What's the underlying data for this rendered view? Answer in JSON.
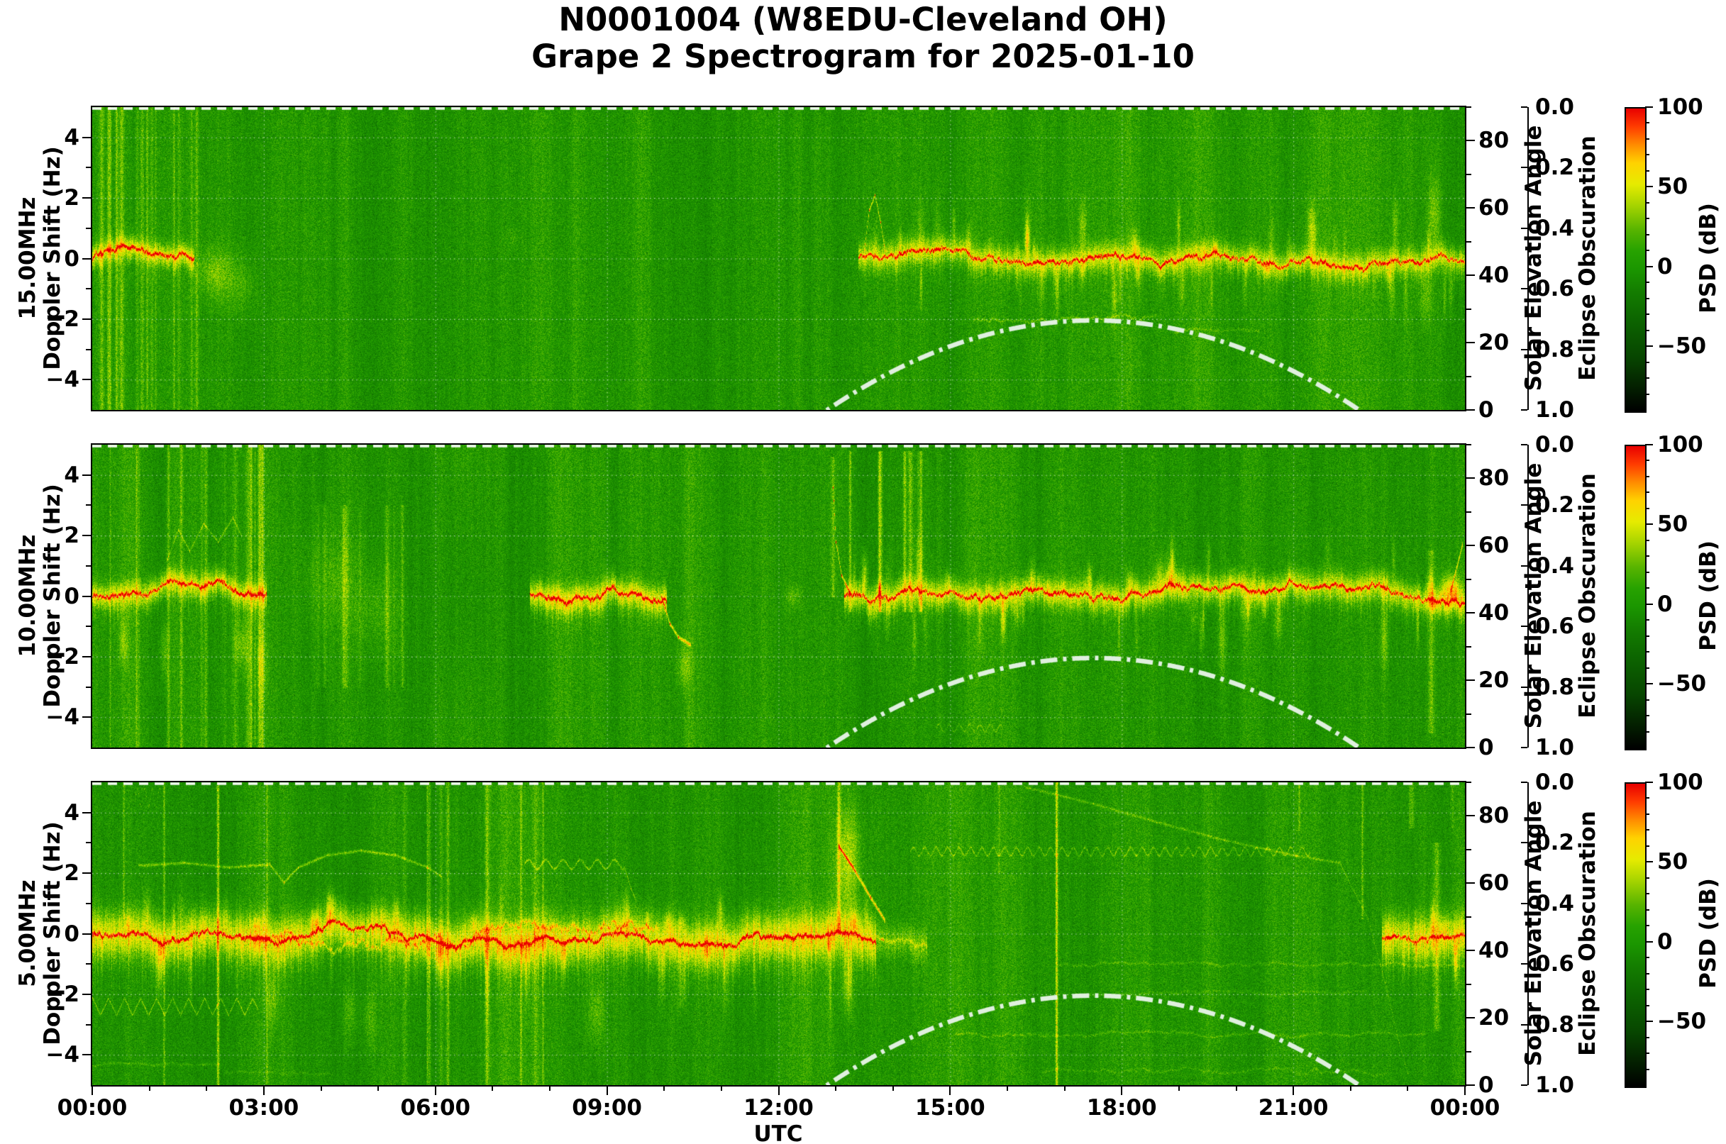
{
  "header": {
    "station_id": "N0001004",
    "callsign": "W8EDU",
    "location": "Cleveland OH",
    "date": "2025-01-10"
  },
  "title": {
    "line1": "N0001004 (W8EDU-Cleveland OH)",
    "line2": "Grape 2 Spectrogram for 2025-01-10"
  },
  "colors": {
    "background_green": "#27a200",
    "band_yellow": "#e6eb00",
    "core_orange": "#ff8c00",
    "core_red": "#e80000",
    "solar_curve": "#e8f4e8",
    "grid_white": "#ffffff"
  },
  "chart_data": {
    "type": "heatmap",
    "title": "N0001004 (W8EDU-Cleveland OH) Grape 2 Spectrogram for 2025-01-10",
    "x_axis": {
      "label": "UTC",
      "range_hours": [
        0,
        24
      ],
      "tick_hours": [
        0,
        3,
        6,
        9,
        12,
        15,
        18,
        21,
        24
      ],
      "tick_labels": [
        "00:00",
        "03:00",
        "06:00",
        "09:00",
        "12:00",
        "15:00",
        "18:00",
        "21:00",
        "00:00"
      ],
      "grid": true
    },
    "right_axes": {
      "solar": {
        "label": "Solar Elevation Angle",
        "range": [
          0,
          90
        ],
        "tick_values": [
          0,
          20,
          40,
          60,
          80
        ],
        "tick_labels": [
          "0",
          "20",
          "40",
          "60",
          "80"
        ]
      },
      "eclipse": {
        "label": "Eclipse Obscuration",
        "range": [
          0.0,
          1.0
        ],
        "inverted": true,
        "tick_values": [
          0,
          0.2,
          0.4,
          0.6,
          0.8,
          1.0
        ],
        "tick_labels": [
          "0.0",
          "0.2",
          "0.4",
          "0.6",
          "0.8",
          "1.0"
        ]
      }
    },
    "colorbar": {
      "label": "PSD (dB)",
      "range_top_bottom": [
        100,
        -90
      ],
      "tick_values": [
        100,
        50,
        0,
        -50
      ],
      "tick_labels": [
        "100",
        "50",
        "0",
        "−50"
      ]
    },
    "solar_curve": {
      "rise": 12.85,
      "peak_time": 17.5,
      "set": 22.15,
      "peak_elev": 26.6,
      "style": "dash-dot white"
    },
    "eclipse_curve": {
      "value": 0.0,
      "note": "flat dashed line along top of each panel (no eclipse)"
    },
    "panels": [
      {
        "freq_label": "15.00MHz",
        "ylabel": "Doppler Shift (Hz)",
        "y_range": [
          -5,
          5
        ],
        "ytick_values": [
          4,
          2,
          0,
          -2,
          -4
        ],
        "ytick_labels": [
          "4",
          "2",
          "0",
          "−2",
          "−4"
        ],
        "features": [
          {
            "k": "streaks",
            "t0": 0.05,
            "t1": 1.8,
            "n": 14,
            "y0": 5,
            "y1": -5,
            "a": 0.09
          },
          {
            "k": "band",
            "t0": 0,
            "t1": 1.78,
            "y": 0.05,
            "s": 0.35,
            "g": 0.22,
            "c": 0.34
          },
          {
            "k": "vline",
            "t": 1.82,
            "y0": 5,
            "y1": -5,
            "a": 0.1,
            "w": 2
          },
          {
            "k": "blob",
            "t": 2.15,
            "y": -0.45,
            "st": 0.3,
            "sy": 0.8,
            "a": 0.13
          },
          {
            "k": "blob",
            "t": 2.6,
            "y": -0.9,
            "st": 0.25,
            "sy": 0.9,
            "a": 0.07
          },
          {
            "k": "blob",
            "t": 7.35,
            "y": 0.7,
            "st": 0.1,
            "sy": 0.3,
            "a": 0.05
          },
          {
            "k": "line",
            "p": [
              [
                13.5,
                0.3
              ],
              [
                13.58,
                1.6
              ],
              [
                13.68,
                2.1
              ],
              [
                13.78,
                1.2
              ],
              [
                13.85,
                0.3
              ]
            ],
            "a": 0.22,
            "w": 2.5
          },
          {
            "k": "band",
            "t0": 13.4,
            "t1": 24,
            "y": 0,
            "s": 0.42,
            "g": 0.2,
            "c": 0.33,
            "spk": [
              24,
              22,
              2.2,
              2.3
            ]
          },
          {
            "k": "hline",
            "t0": 15.4,
            "t1": 18.6,
            "y": -2.05,
            "a": 0.1,
            "wg": 0.07
          },
          {
            "k": "hline",
            "t0": 18.9,
            "t1": 20.4,
            "y": -2.45,
            "a": 0.07,
            "wg": 0.05
          },
          {
            "k": "blob",
            "t": 23.45,
            "y": 1.5,
            "st": 0.1,
            "sy": 1.2,
            "a": 0.13
          },
          {
            "k": "blob",
            "t": 23.3,
            "y": -1.2,
            "st": 0.12,
            "sy": 0.9,
            "a": 0.1
          }
        ]
      },
      {
        "freq_label": "10.00MHz",
        "ylabel": "Doppler Shift (Hz)",
        "y_range": [
          -5,
          5
        ],
        "ytick_values": [
          4,
          2,
          0,
          -2,
          -4
        ],
        "ytick_labels": [
          "4",
          "2",
          "0",
          "−2",
          "−4"
        ],
        "features": [
          {
            "k": "streaks",
            "t0": 0.3,
            "t1": 3.3,
            "n": 16,
            "y0": 5,
            "y1": -5,
            "a": 0.08
          },
          {
            "k": "band",
            "t0": 0,
            "t1": 3.05,
            "y": 0,
            "s": 0.4,
            "g": 0.22,
            "c": 0.34
          },
          {
            "k": "blob",
            "t": 0.55,
            "y": -1.5,
            "st": 0.08,
            "sy": 0.8,
            "a": 0.12
          },
          {
            "k": "blob",
            "t": 1.25,
            "y": -1.8,
            "st": 0.07,
            "sy": 0.9,
            "a": 0.11
          },
          {
            "k": "blob",
            "t": 2.6,
            "y": -1.6,
            "st": 0.12,
            "sy": 0.8,
            "a": 0.12
          },
          {
            "k": "blob",
            "t": 2.95,
            "y": -2.2,
            "st": 0.1,
            "sy": 1.0,
            "a": 0.1
          },
          {
            "k": "line",
            "p": [
              [
                1.3,
                1.2
              ],
              [
                1.5,
                2.2
              ],
              [
                1.7,
                1.5
              ],
              [
                1.95,
                2.4
              ],
              [
                2.2,
                1.8
              ],
              [
                2.45,
                2.6
              ],
              [
                2.6,
                2.0
              ]
            ],
            "a": 0.12,
            "w": 2
          },
          {
            "k": "streaks",
            "t0": 3.6,
            "t1": 5.6,
            "n": 8,
            "y0": 3,
            "y1": -3,
            "a": 0.07
          },
          {
            "k": "blob",
            "t": 4.2,
            "y": 0.5,
            "st": 0.5,
            "sy": 1.6,
            "a": 0.07
          },
          {
            "k": "blob",
            "t": 5.0,
            "y": -0.5,
            "st": 0.4,
            "sy": 1.4,
            "a": 0.06
          },
          {
            "k": "dark",
            "t": 6.5,
            "y": 0,
            "st": 0.55,
            "sy": 4,
            "a": 0.04
          },
          {
            "k": "band",
            "t0": 7.65,
            "t1": 10.05,
            "y": 0.05,
            "s": 0.45,
            "g": 0.24,
            "c": 0.36
          },
          {
            "k": "line",
            "p": [
              [
                9.95,
                0
              ],
              [
                10.1,
                -0.9
              ],
              [
                10.25,
                -1.35
              ],
              [
                10.45,
                -1.6
              ]
            ],
            "a": 0.28,
            "w": 2.5
          },
          {
            "k": "blob",
            "t": 10.35,
            "y": -2.3,
            "st": 0.13,
            "sy": 0.7,
            "a": 0.11
          },
          {
            "k": "blob",
            "t": 12.25,
            "y": 0,
            "st": 0.12,
            "sy": 0.35,
            "a": 0.1
          },
          {
            "k": "vline",
            "t": 12.95,
            "y0": 4.6,
            "y1": 0,
            "a": 0.12,
            "w": 3
          },
          {
            "k": "line",
            "p": [
              [
                12.95,
                3.6
              ],
              [
                13.0,
                1.8
              ],
              [
                13.1,
                0.7
              ],
              [
                13.25,
                0.1
              ]
            ],
            "a": 0.3,
            "w": 2.5
          },
          {
            "k": "streaks",
            "t0": 13.0,
            "t1": 14.6,
            "n": 7,
            "y0": 4.8,
            "y1": -0.5,
            "a": 0.13
          },
          {
            "k": "band",
            "t0": 13.15,
            "t1": 24,
            "y": 0,
            "s": 0.45,
            "g": 0.22,
            "c": 0.34,
            "spk": [
              26,
              26,
              2.2,
              2.6
            ]
          },
          {
            "k": "wave",
            "t0": 14.75,
            "t1": 15.9,
            "y": -4.35,
            "A": 0.12,
            "P": 0.18,
            "a": 0.09
          },
          {
            "k": "vline",
            "t": 23.4,
            "y0": 1.5,
            "y1": -4.5,
            "a": 0.1,
            "w": 4
          },
          {
            "k": "blob",
            "t": 23.75,
            "y": 0.3,
            "st": 0.18,
            "sy": 0.5,
            "a": 0.24
          },
          {
            "k": "line",
            "p": [
              [
                23.75,
                0.2
              ],
              [
                23.95,
                1.7
              ]
            ],
            "a": 0.28,
            "w": 3
          }
        ]
      },
      {
        "freq_label": "5.00MHz",
        "ylabel": "Doppler Shift (Hz)",
        "y_range": [
          -5,
          5
        ],
        "ytick_values": [
          4,
          2,
          0,
          -2,
          -4
        ],
        "ytick_labels": [
          "4",
          "2",
          "0",
          "−2",
          "−4"
        ],
        "features": [
          {
            "k": "zig",
            "t0": 0,
            "t1": 2.9,
            "y": -2.4,
            "A": 0.28,
            "P": 0.28,
            "a": 0.16
          },
          {
            "k": "hline",
            "t0": 0,
            "t1": 2.3,
            "y": -4.35,
            "a": 0.07,
            "wg": 0.03
          },
          {
            "k": "hline",
            "t0": 2.3,
            "t1": 4.2,
            "y": -4.6,
            "a": 0.05,
            "wg": 0.03
          },
          {
            "k": "wave",
            "t0": 0.75,
            "t1": 1.2,
            "y": 4.5,
            "A": 0.3,
            "P": 0.13,
            "a": 0.1
          },
          {
            "k": "vline",
            "t": 0.55,
            "y0": 5,
            "y1": 0.5,
            "a": 0.12,
            "w": 1.5
          },
          {
            "k": "vline",
            "t": 1.25,
            "y0": 5,
            "y1": -5,
            "a": 0.14,
            "w": 1.5
          },
          {
            "k": "vline",
            "t": 2.2,
            "y0": 5,
            "y1": -5,
            "a": 0.22,
            "w": 2
          },
          {
            "k": "vline",
            "t": 3.05,
            "y0": 5,
            "y1": -5,
            "a": 0.1,
            "w": 1.5
          },
          {
            "k": "streaks",
            "t0": 5.4,
            "t1": 8.3,
            "n": 9,
            "y0": 5,
            "y1": -5,
            "a": 0.1
          },
          {
            "k": "band",
            "t0": 0,
            "t1": 13.7,
            "y": 0,
            "s": 0.75,
            "g": 0.26,
            "c": 0.38,
            "spk": [
              20,
              24,
              1.6,
              2.8
            ]
          },
          {
            "k": "hline",
            "t0": 2.8,
            "t1": 9.9,
            "y": -0.1,
            "a": 0.16,
            "wg": 0.18,
            "w": 2.5
          },
          {
            "k": "line",
            "p": [
              [
                0.8,
                2.25
              ],
              [
                1.6,
                2.35
              ],
              [
                2.4,
                2.2
              ],
              [
                3.1,
                2.3
              ],
              [
                3.35,
                1.7
              ],
              [
                3.6,
                2.2
              ],
              [
                4.1,
                2.6
              ],
              [
                4.7,
                2.75
              ],
              [
                5.3,
                2.6
              ],
              [
                5.85,
                2.2
              ],
              [
                6.1,
                1.9
              ]
            ],
            "a": 0.15,
            "w": 2
          },
          {
            "k": "dark",
            "t": 4.7,
            "y": 0.9,
            "st": 0.75,
            "sy": 0.75,
            "a": 0.05
          },
          {
            "k": "wave",
            "t0": 7.55,
            "t1": 9.3,
            "y": 2.3,
            "A": 0.15,
            "P": 0.3,
            "a": 0.15
          },
          {
            "k": "line",
            "p": [
              [
                9.3,
                2.2
              ],
              [
                9.42,
                1.5
              ],
              [
                9.5,
                1.1
              ]
            ],
            "a": 0.12,
            "w": 2
          },
          {
            "k": "blob",
            "t": 3.15,
            "y": -2.2,
            "st": 0.1,
            "sy": 0.9,
            "a": 0.11
          },
          {
            "k": "blob",
            "t": 4.5,
            "y": -2.6,
            "st": 0.12,
            "sy": 1.0,
            "a": 0.1
          },
          {
            "k": "blob",
            "t": 4.85,
            "y": -2.8,
            "st": 0.1,
            "sy": 1.0,
            "a": 0.09
          },
          {
            "k": "blob",
            "t": 8.8,
            "y": -2.6,
            "st": 0.15,
            "sy": 1.1,
            "a": 0.11
          },
          {
            "k": "blob",
            "t": 10.3,
            "y": -1.8,
            "st": 0.1,
            "sy": 0.8,
            "a": 0.08
          },
          {
            "k": "blob",
            "t": 13.2,
            "y": 2.5,
            "st": 0.22,
            "sy": 1.8,
            "a": 0.2
          },
          {
            "k": "vline",
            "t": 13.05,
            "y0": 5,
            "y1": 0,
            "a": 0.18,
            "w": 2.5
          },
          {
            "k": "line",
            "p": [
              [
                13.05,
                2.9
              ],
              [
                13.3,
                2.2
              ],
              [
                13.6,
                1.2
              ],
              [
                13.85,
                0.45
              ]
            ],
            "a": 0.32,
            "w": 3
          },
          {
            "k": "blob",
            "t": 13.2,
            "y": -1.6,
            "st": 0.1,
            "sy": 1.0,
            "a": 0.14
          },
          {
            "k": "band",
            "t0": 13.7,
            "t1": 14.6,
            "y": -0.15,
            "s": 0.5,
            "g": 0.12,
            "c": 0.1
          },
          {
            "k": "wave",
            "t0": 14.3,
            "t1": 21.3,
            "y": 2.72,
            "A": 0.14,
            "P": 0.2,
            "a": 0.13
          },
          {
            "k": "line",
            "p": [
              [
                16.3,
                4.85
              ],
              [
                17.5,
                4.3
              ],
              [
                18.6,
                3.7
              ],
              [
                19.8,
                3.1
              ],
              [
                21.0,
                2.6
              ],
              [
                21.8,
                2.35
              ]
            ],
            "a": 0.11,
            "w": 1.8
          },
          {
            "k": "line",
            "p": [
              [
                21.8,
                2.35
              ],
              [
                22.3,
                0.5
              ],
              [
                22.6,
                -1.6
              ],
              [
                22.85,
                -3.6
              ],
              [
                23.0,
                -4.6
              ]
            ],
            "a": 0.09,
            "w": 1.8
          },
          {
            "k": "hline",
            "t0": 16.9,
            "t1": 24,
            "y": -1.05,
            "a": 0.07,
            "wg": 0.04
          },
          {
            "k": "hline",
            "t0": 17.4,
            "t1": 22.3,
            "y": -2.0,
            "a": 0.055,
            "wg": 0.04
          },
          {
            "k": "hline",
            "t0": 15.1,
            "t1": 23.3,
            "y": -3.3,
            "a": 0.075,
            "wg": 0.04
          },
          {
            "k": "hline",
            "t0": 16.6,
            "t1": 22.7,
            "y": -4.6,
            "a": 0.06,
            "wg": 0.06
          },
          {
            "k": "vline",
            "t": 15.85,
            "y0": 5,
            "y1": 2,
            "a": 0.08,
            "w": 1.3
          },
          {
            "k": "vline",
            "t": 16.85,
            "y0": 5,
            "y1": -5,
            "a": 0.26,
            "w": 1.8
          },
          {
            "k": "vline",
            "t": 21.1,
            "y0": 5,
            "y1": 3.4,
            "a": 0.1,
            "w": 1.2
          },
          {
            "k": "vline",
            "t": 22.2,
            "y0": 5,
            "y1": 0.5,
            "a": 0.12,
            "w": 1.5
          },
          {
            "k": "band",
            "t0": 22.55,
            "t1": 24,
            "y": -0.2,
            "s": 0.7,
            "g": 0.24,
            "c": 0.28,
            "spk": [
              4,
              4,
              1.5,
              2.0
            ]
          },
          {
            "k": "vline",
            "t": 23.5,
            "y0": 3,
            "y1": -3.2,
            "a": 0.12,
            "w": 5
          },
          {
            "k": "streaks",
            "t0": 22.9,
            "t1": 23.8,
            "n": 4,
            "y0": 5,
            "y1": 3.5,
            "a": 0.08
          }
        ]
      }
    ]
  }
}
